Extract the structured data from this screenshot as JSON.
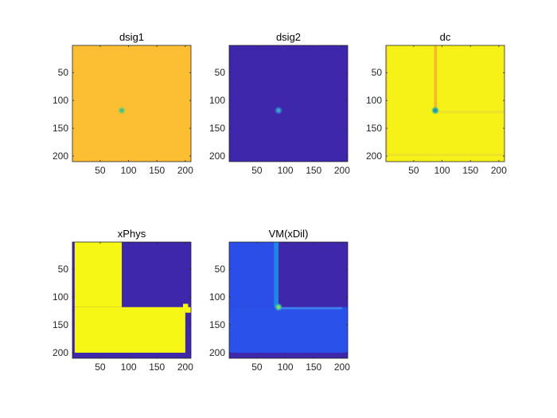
{
  "chart_data": [
    {
      "type": "heatmap",
      "title": "dsig1",
      "xlim": [
        1,
        210
      ],
      "ylim": [
        1,
        210
      ],
      "xticks": [
        50,
        100,
        150,
        200
      ],
      "yticks": [
        50,
        100,
        150,
        200
      ],
      "background_color": "#fcbf34",
      "features": [
        {
          "kind": "spot",
          "x": 88,
          "y": 118,
          "color": "#1fa5c5",
          "ring": "#7fcf5a",
          "label": "hotspot"
        }
      ]
    },
    {
      "type": "heatmap",
      "title": "dsig2",
      "xlim": [
        1,
        210
      ],
      "ylim": [
        1,
        210
      ],
      "xticks": [
        50,
        100,
        150,
        200
      ],
      "yticks": [
        50,
        100,
        150,
        200
      ],
      "background_color": "#3e27ab",
      "features": [
        {
          "kind": "spot",
          "x": 88,
          "y": 118,
          "color": "#4fc8b0",
          "ring": "#2f7bd8",
          "label": "hotspot"
        }
      ]
    },
    {
      "type": "heatmap",
      "title": "dc",
      "xlim": [
        1,
        210
      ],
      "ylim": [
        1,
        210
      ],
      "xticks": [
        50,
        100,
        150,
        200
      ],
      "yticks": [
        50,
        100,
        150,
        200
      ],
      "background_color": "#f6f218",
      "features": [
        {
          "kind": "band",
          "x": [
            86,
            91
          ],
          "y": [
            1,
            118
          ],
          "color": "#f3b82e",
          "label": "vertical edge"
        },
        {
          "kind": "band",
          "x": [
            1,
            4
          ],
          "y": [
            1,
            200
          ],
          "color": "#f9d520",
          "label": "left edge"
        },
        {
          "kind": "band",
          "x": [
            88,
            210
          ],
          "y": [
            118,
            123
          ],
          "color": "#eee32a",
          "label": "horizontal edge"
        },
        {
          "kind": "band",
          "x": [
            1,
            210
          ],
          "y": [
            196,
            200
          ],
          "color": "#eee32a",
          "label": "bottom edge"
        },
        {
          "kind": "spot",
          "x": 88,
          "y": 118,
          "color": "#1f6fd6",
          "ring": "#2dbb9a",
          "label": "corner"
        }
      ]
    },
    {
      "type": "heatmap",
      "title": "xPhys",
      "xlim": [
        1,
        210
      ],
      "ylim": [
        1,
        210
      ],
      "xticks": [
        50,
        100,
        150,
        200
      ],
      "yticks": [
        50,
        100,
        150,
        200
      ],
      "background_color": "#3e27ab",
      "features": [
        {
          "kind": "region",
          "x": [
            5,
            88
          ],
          "y": [
            1,
            118
          ],
          "color": "#f7f716",
          "label": "vertical arm"
        },
        {
          "kind": "region",
          "x": [
            5,
            200
          ],
          "y": [
            118,
            200
          ],
          "color": "#f7f716",
          "label": "horizontal arm"
        },
        {
          "kind": "region",
          "x": [
            200,
            210
          ],
          "y": [
            118,
            128
          ],
          "color": "#f7f716",
          "label": "right tab"
        },
        {
          "kind": "region",
          "x": [
            196,
            205
          ],
          "y": [
            112,
            120
          ],
          "color": "#f7f716",
          "label": "corner tab"
        }
      ]
    },
    {
      "type": "heatmap",
      "title": "VM(xDil)",
      "xlim": [
        1,
        210
      ],
      "ylim": [
        1,
        210
      ],
      "xticks": [
        50,
        100,
        150,
        200
      ],
      "yticks": [
        50,
        100,
        150,
        200
      ],
      "background_color": "#3e27ab",
      "features": [
        {
          "kind": "region",
          "x": [
            1,
            88
          ],
          "y": [
            1,
            118
          ],
          "color": "#2c4ee8",
          "label": "vertical arm"
        },
        {
          "kind": "region",
          "x": [
            1,
            210
          ],
          "y": [
            118,
            200
          ],
          "color": "#2a52ea",
          "label": "horizontal arm"
        },
        {
          "kind": "band",
          "x": [
            80,
            88
          ],
          "y": [
            1,
            118
          ],
          "color": "#1f86e8",
          "label": "inner vertical edge"
        },
        {
          "kind": "band",
          "x": [
            88,
            200
          ],
          "y": [
            118,
            122
          ],
          "color": "#3d7fec",
          "label": "inner horizontal edge"
        },
        {
          "kind": "spot",
          "x": 88,
          "y": 118,
          "color": "#c7e63b",
          "ring": "#38c5a5",
          "label": "stress concentration"
        }
      ]
    }
  ]
}
